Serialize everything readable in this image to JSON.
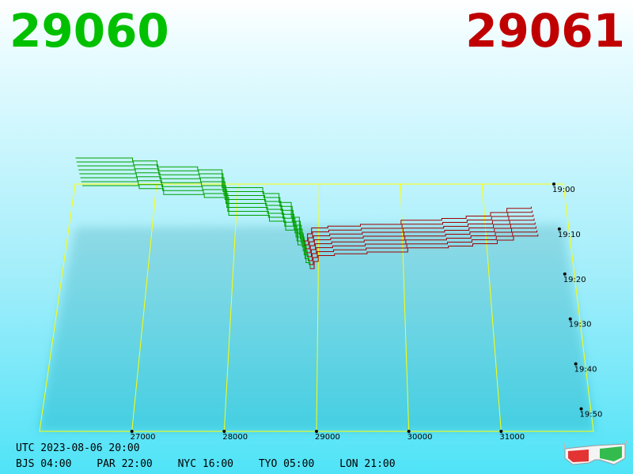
{
  "header": {
    "left_value": "29060",
    "right_value": "29061",
    "left_color": "#00c000",
    "right_color": "#c00000"
  },
  "footer": {
    "utc": "UTC 2023-08-06 20:00",
    "zones": [
      "BJS 04:00",
      "PAR 22:00",
      "NYC 16:00",
      "TYO 05:00",
      "LON 21:00"
    ]
  },
  "chart_data": {
    "type": "line",
    "title": "",
    "x_ticks": [
      "27000",
      "28000",
      "29000",
      "30000",
      "31000"
    ],
    "y_ticks": [
      "19:00",
      "19:10",
      "19:20",
      "19:30",
      "19:40",
      "19:50"
    ],
    "xlim": [
      26000,
      32000
    ],
    "time_range_minutes": [
      0,
      55
    ],
    "divider_price": 29000,
    "grid": true,
    "colors": {
      "bid": "#00a000",
      "ask": "#a00000",
      "grid": "#ffff00"
    },
    "series": [
      {
        "side": "bid",
        "points": [
          [
            26200,
            140
          ],
          [
            26900,
            135
          ],
          [
            27200,
            125
          ],
          [
            27700,
            120
          ],
          [
            28000,
            90
          ],
          [
            28500,
            80
          ],
          [
            28700,
            65
          ],
          [
            28850,
            40
          ],
          [
            28950,
            10
          ],
          [
            29000,
            0
          ]
        ]
      },
      {
        "side": "ask",
        "points": [
          [
            29000,
            0
          ],
          [
            29050,
            12
          ],
          [
            29100,
            22
          ],
          [
            29300,
            25
          ],
          [
            29700,
            28
          ],
          [
            30200,
            35
          ],
          [
            30700,
            38
          ],
          [
            31000,
            42
          ],
          [
            31300,
            48
          ],
          [
            31500,
            55
          ],
          [
            31800,
            58
          ]
        ]
      }
    ]
  },
  "icons": {
    "glasses": "3d-glasses-icon"
  }
}
